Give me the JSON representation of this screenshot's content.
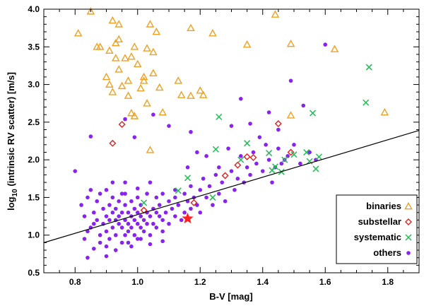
{
  "chart_data": {
    "type": "scatter",
    "xlabel": "B-V [mag]",
    "ylabel_parts": [
      "log",
      "10",
      " (intrinsic RV scatter) [m/s]"
    ],
    "xlim": [
      0.7,
      1.9
    ],
    "ylim": [
      0.5,
      4.0
    ],
    "xticks": [
      0.8,
      1.0,
      1.2,
      1.4,
      1.6,
      1.8
    ],
    "yticks": [
      0.5,
      1.0,
      1.5,
      2.0,
      2.5,
      3.0,
      3.5,
      4.0
    ],
    "xtick_labels": [
      "0.8",
      "1.0",
      "1.2",
      "1.4",
      "1.6",
      "1.8"
    ],
    "ytick_labels": [
      "0.5",
      "1.0",
      "1.5",
      "2.0",
      "2.5",
      "3.0",
      "3.5",
      "4.0"
    ],
    "fit_line": {
      "x": [
        0.7,
        1.9
      ],
      "y": [
        0.9,
        2.39
      ],
      "color": "#000000"
    },
    "legend_position": "bottom-right",
    "series": [
      {
        "name": "binaries",
        "marker": "triangle",
        "color": "#f0a020",
        "points": [
          [
            0.81,
            3.68
          ],
          [
            0.85,
            3.97
          ],
          [
            0.87,
            3.5
          ],
          [
            0.88,
            3.5
          ],
          [
            0.9,
            3.1
          ],
          [
            0.91,
            3.0
          ],
          [
            0.91,
            3.45
          ],
          [
            0.92,
            2.9
          ],
          [
            0.92,
            3.85
          ],
          [
            0.93,
            3.55
          ],
          [
            0.93,
            3.35
          ],
          [
            0.94,
            3.8
          ],
          [
            0.94,
            3.6
          ],
          [
            0.94,
            3.2
          ],
          [
            0.95,
            2.98
          ],
          [
            0.96,
            3.35
          ],
          [
            0.97,
            3.05
          ],
          [
            0.97,
            2.85
          ],
          [
            0.98,
            3.37
          ],
          [
            0.98,
            2.62
          ],
          [
            0.99,
            3.5
          ],
          [
            0.99,
            2.58
          ],
          [
            1.0,
            3.27
          ],
          [
            1.01,
            2.95
          ],
          [
            1.02,
            3.1
          ],
          [
            1.02,
            3.05
          ],
          [
            1.03,
            3.48
          ],
          [
            1.03,
            2.75
          ],
          [
            1.04,
            3.8
          ],
          [
            1.04,
            2.13
          ],
          [
            1.05,
            3.15
          ],
          [
            1.05,
            3.43
          ],
          [
            1.06,
            3.7
          ],
          [
            1.07,
            2.96
          ],
          [
            1.08,
            2.63
          ],
          [
            1.13,
            3.05
          ],
          [
            1.14,
            2.86
          ],
          [
            1.17,
            3.75
          ],
          [
            1.17,
            2.85
          ],
          [
            1.2,
            2.92
          ],
          [
            1.21,
            2.86
          ],
          [
            1.24,
            3.68
          ],
          [
            1.35,
            3.53
          ],
          [
            1.44,
            3.93
          ],
          [
            1.49,
            3.54
          ],
          [
            1.49,
            2.59
          ],
          [
            1.63,
            3.47
          ],
          [
            1.79,
            2.63
          ]
        ]
      },
      {
        "name": "substellar",
        "marker": "diamond",
        "color": "#dd2222",
        "points": [
          [
            0.92,
            2.22
          ],
          [
            0.95,
            2.47
          ],
          [
            1.02,
            1.33
          ],
          [
            1.18,
            1.43
          ],
          [
            1.28,
            1.79
          ],
          [
            1.32,
            1.93
          ],
          [
            1.35,
            2.04
          ],
          [
            1.37,
            2.03
          ],
          [
            1.45,
            2.48
          ],
          [
            1.49,
            2.1
          ]
        ]
      },
      {
        "name": "systematic",
        "marker": "x",
        "color": "#22bb55",
        "points": [
          [
            1.02,
            1.43
          ],
          [
            1.13,
            1.59
          ],
          [
            1.16,
            1.76
          ],
          [
            1.24,
            1.5
          ],
          [
            1.25,
            2.14
          ],
          [
            1.26,
            2.57
          ],
          [
            1.33,
            2.0
          ],
          [
            1.35,
            2.22
          ],
          [
            1.42,
            2.09
          ],
          [
            1.43,
            1.86
          ],
          [
            1.44,
            1.91
          ],
          [
            1.46,
            1.84
          ],
          [
            1.47,
            2.0
          ],
          [
            1.5,
            2.07
          ],
          [
            1.54,
            2.1
          ],
          [
            1.55,
            1.98
          ],
          [
            1.56,
            2.62
          ],
          [
            1.57,
            1.88
          ],
          [
            1.58,
            2.04
          ],
          [
            1.73,
            2.76
          ],
          [
            1.74,
            3.23
          ]
        ]
      },
      {
        "name": "others",
        "marker": "dot",
        "color": "#8822ee",
        "points": [
          [
            0.8,
            1.85
          ],
          [
            0.82,
            1.4
          ],
          [
            0.83,
            1.25
          ],
          [
            0.84,
            1.5
          ],
          [
            0.85,
            1.6
          ],
          [
            0.85,
            1.1
          ],
          [
            0.86,
            1.3
          ],
          [
            0.87,
            1.45
          ],
          [
            0.87,
            1.2
          ],
          [
            0.88,
            1.55
          ],
          [
            0.88,
            1.0
          ],
          [
            0.89,
            1.35
          ],
          [
            0.89,
            1.15
          ],
          [
            0.9,
            1.25
          ],
          [
            0.9,
            1.05
          ],
          [
            0.9,
            1.6
          ],
          [
            0.91,
            1.2
          ],
          [
            0.91,
            1.4
          ],
          [
            0.91,
            0.95
          ],
          [
            0.92,
            1.3
          ],
          [
            0.92,
            1.1
          ],
          [
            0.92,
            1.5
          ],
          [
            0.93,
            1.2
          ],
          [
            0.93,
            1.0
          ],
          [
            0.93,
            1.35
          ],
          [
            0.94,
            1.15
          ],
          [
            0.94,
            1.25
          ],
          [
            0.94,
            1.45
          ],
          [
            0.95,
            1.1
          ],
          [
            0.95,
            1.3
          ],
          [
            0.95,
            0.9
          ],
          [
            0.95,
            1.55
          ],
          [
            0.96,
            1.2
          ],
          [
            0.96,
            1.0
          ],
          [
            0.96,
            1.4
          ],
          [
            0.96,
            1.7
          ],
          [
            0.97,
            1.15
          ],
          [
            0.97,
            1.3
          ],
          [
            0.97,
            1.05
          ],
          [
            0.98,
            1.25
          ],
          [
            0.98,
            1.1
          ],
          [
            0.98,
            1.45
          ],
          [
            0.98,
            0.85
          ],
          [
            0.99,
            1.2
          ],
          [
            0.99,
            1.35
          ],
          [
            0.99,
            1.0
          ],
          [
            1.0,
            1.15
          ],
          [
            1.0,
            1.3
          ],
          [
            1.0,
            1.5
          ],
          [
            1.0,
            0.95
          ],
          [
            1.01,
            1.25
          ],
          [
            1.01,
            1.1
          ],
          [
            1.01,
            1.4
          ],
          [
            1.02,
            1.2
          ],
          [
            1.02,
            1.05
          ],
          [
            1.03,
            1.3
          ],
          [
            1.03,
            1.15
          ],
          [
            1.03,
            1.55
          ],
          [
            1.04,
            1.25
          ],
          [
            1.04,
            1.0
          ],
          [
            1.05,
            1.35
          ],
          [
            1.05,
            1.15
          ],
          [
            1.06,
            1.3
          ],
          [
            1.06,
            1.1
          ],
          [
            1.06,
            1.5
          ],
          [
            1.07,
            1.25
          ],
          [
            1.07,
            1.4
          ],
          [
            1.08,
            1.2
          ],
          [
            1.08,
            1.05
          ],
          [
            1.09,
            1.3
          ],
          [
            1.1,
            1.45
          ],
          [
            1.1,
            1.15
          ],
          [
            1.11,
            1.35
          ],
          [
            1.12,
            1.25
          ],
          [
            1.12,
            1.6
          ],
          [
            1.13,
            1.4
          ],
          [
            1.14,
            1.2
          ],
          [
            1.15,
            1.55
          ],
          [
            1.15,
            1.3
          ],
          [
            1.16,
            1.45
          ],
          [
            1.17,
            1.35
          ],
          [
            1.17,
            1.65
          ],
          [
            1.18,
            1.5
          ],
          [
            1.19,
            1.4
          ],
          [
            1.2,
            1.6
          ],
          [
            1.2,
            1.3
          ],
          [
            1.21,
            1.75
          ],
          [
            1.22,
            1.5
          ],
          [
            1.23,
            1.65
          ],
          [
            1.24,
            1.4
          ],
          [
            1.25,
            1.8
          ],
          [
            1.26,
            1.55
          ],
          [
            1.27,
            1.7
          ],
          [
            1.28,
            1.45
          ],
          [
            1.3,
            1.85
          ],
          [
            1.31,
            1.6
          ],
          [
            1.32,
            1.75
          ],
          [
            1.33,
            2.05
          ],
          [
            1.34,
            1.7
          ],
          [
            1.35,
            1.9
          ],
          [
            1.36,
            1.8
          ],
          [
            1.37,
            2.1
          ],
          [
            1.38,
            1.95
          ],
          [
            1.4,
            1.85
          ],
          [
            1.41,
            2.2
          ],
          [
            1.42,
            2.0
          ],
          [
            1.44,
            1.9
          ],
          [
            1.45,
            2.15
          ],
          [
            1.46,
            1.95
          ],
          [
            1.48,
            2.05
          ],
          [
            1.5,
            2.2
          ],
          [
            1.52,
            1.95
          ],
          [
            1.55,
            2.1
          ],
          [
            1.57,
            2.0
          ],
          [
            1.6,
            3.53
          ],
          [
            0.85,
            2.31
          ],
          [
            0.86,
            0.82
          ],
          [
            0.96,
            2.54
          ],
          [
            0.99,
            2.3
          ],
          [
            1.05,
            2.6
          ],
          [
            1.1,
            2.45
          ],
          [
            1.17,
            2.37
          ],
          [
            1.22,
            2.05
          ],
          [
            1.3,
            2.45
          ],
          [
            1.33,
            2.81
          ],
          [
            1.36,
            2.48
          ],
          [
            1.42,
            2.63
          ],
          [
            1.45,
            2.4
          ],
          [
            1.49,
            3.05
          ],
          [
            1.53,
            2.72
          ],
          [
            1.47,
            2.0
          ],
          [
            0.83,
            0.95
          ],
          [
            0.84,
            1.05
          ],
          [
            0.86,
            1.15
          ],
          [
            0.88,
            0.9
          ],
          [
            0.9,
            0.85
          ],
          [
            0.93,
            0.8
          ],
          [
            0.97,
            0.9
          ],
          [
            1.01,
            0.95
          ],
          [
            1.04,
            0.88
          ],
          [
            1.08,
            0.92
          ],
          [
            0.84,
            0.7
          ],
          [
            0.9,
            0.72
          ],
          [
            0.92,
            1.7
          ],
          [
            0.96,
            1.55
          ],
          [
            1.0,
            1.62
          ],
          [
            1.04,
            1.7
          ],
          [
            1.08,
            1.55
          ],
          [
            1.12,
            1.5
          ],
          [
            1.16,
            1.9
          ],
          [
            1.19,
            2.1
          ],
          [
            1.26,
            1.9
          ],
          [
            1.29,
            2.15
          ],
          [
            1.39,
            2.3
          ],
          [
            1.43,
            1.7
          ]
        ]
      }
    ],
    "highlight": {
      "name": "sun",
      "marker": "star",
      "color": "#ff2020",
      "x": 1.16,
      "y": 1.22
    }
  }
}
